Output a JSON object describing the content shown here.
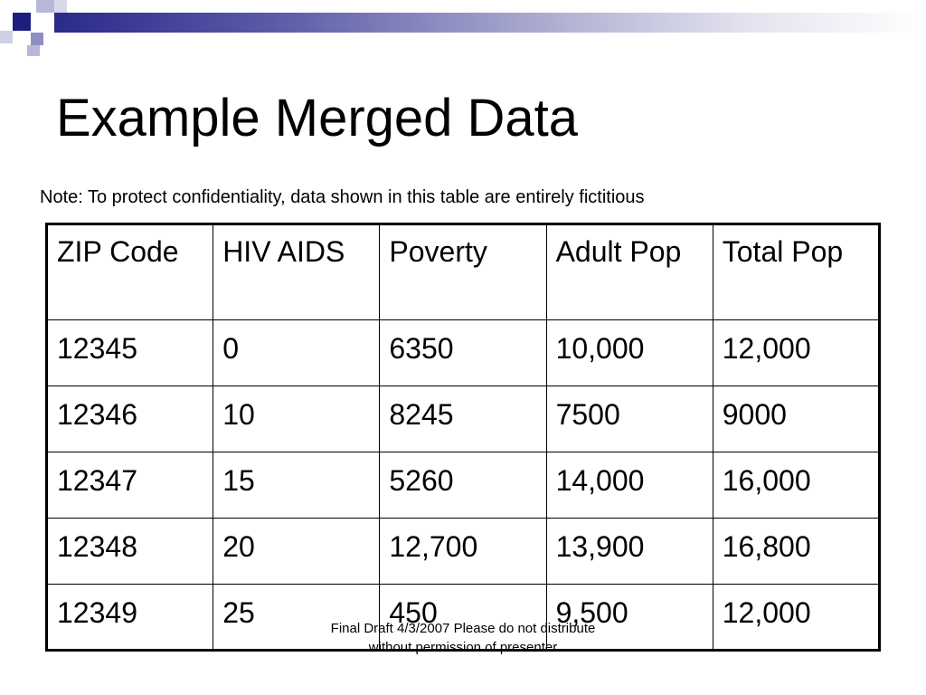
{
  "slide": {
    "title": "Example Merged Data",
    "note": "Note: To protect confidentiality, data shown in this table are entirely fictitious",
    "footer": "Final Draft 4/3/2007      Please do not distribute without permission of presenter"
  },
  "table": {
    "headers": [
      "ZIP Code",
      "HIV AIDS",
      "Poverty",
      "Adult Pop",
      "Total Pop"
    ],
    "rows": [
      [
        "12345",
        "0",
        "6350",
        "10,000",
        "12,000"
      ],
      [
        "12346",
        "10",
        "8245",
        "7500",
        "9000"
      ],
      [
        "12347",
        "15",
        "5260",
        "14,000",
        "16,000"
      ],
      [
        "12348",
        "20",
        "12,700",
        "13,900",
        "16,800"
      ],
      [
        "12349",
        "25",
        "450",
        "9,500",
        "12,000"
      ]
    ]
  },
  "colors": {
    "banner_dark": "#1e1e7e",
    "banner_light": "#b7b7da",
    "text": "#000000",
    "background": "#ffffff"
  }
}
